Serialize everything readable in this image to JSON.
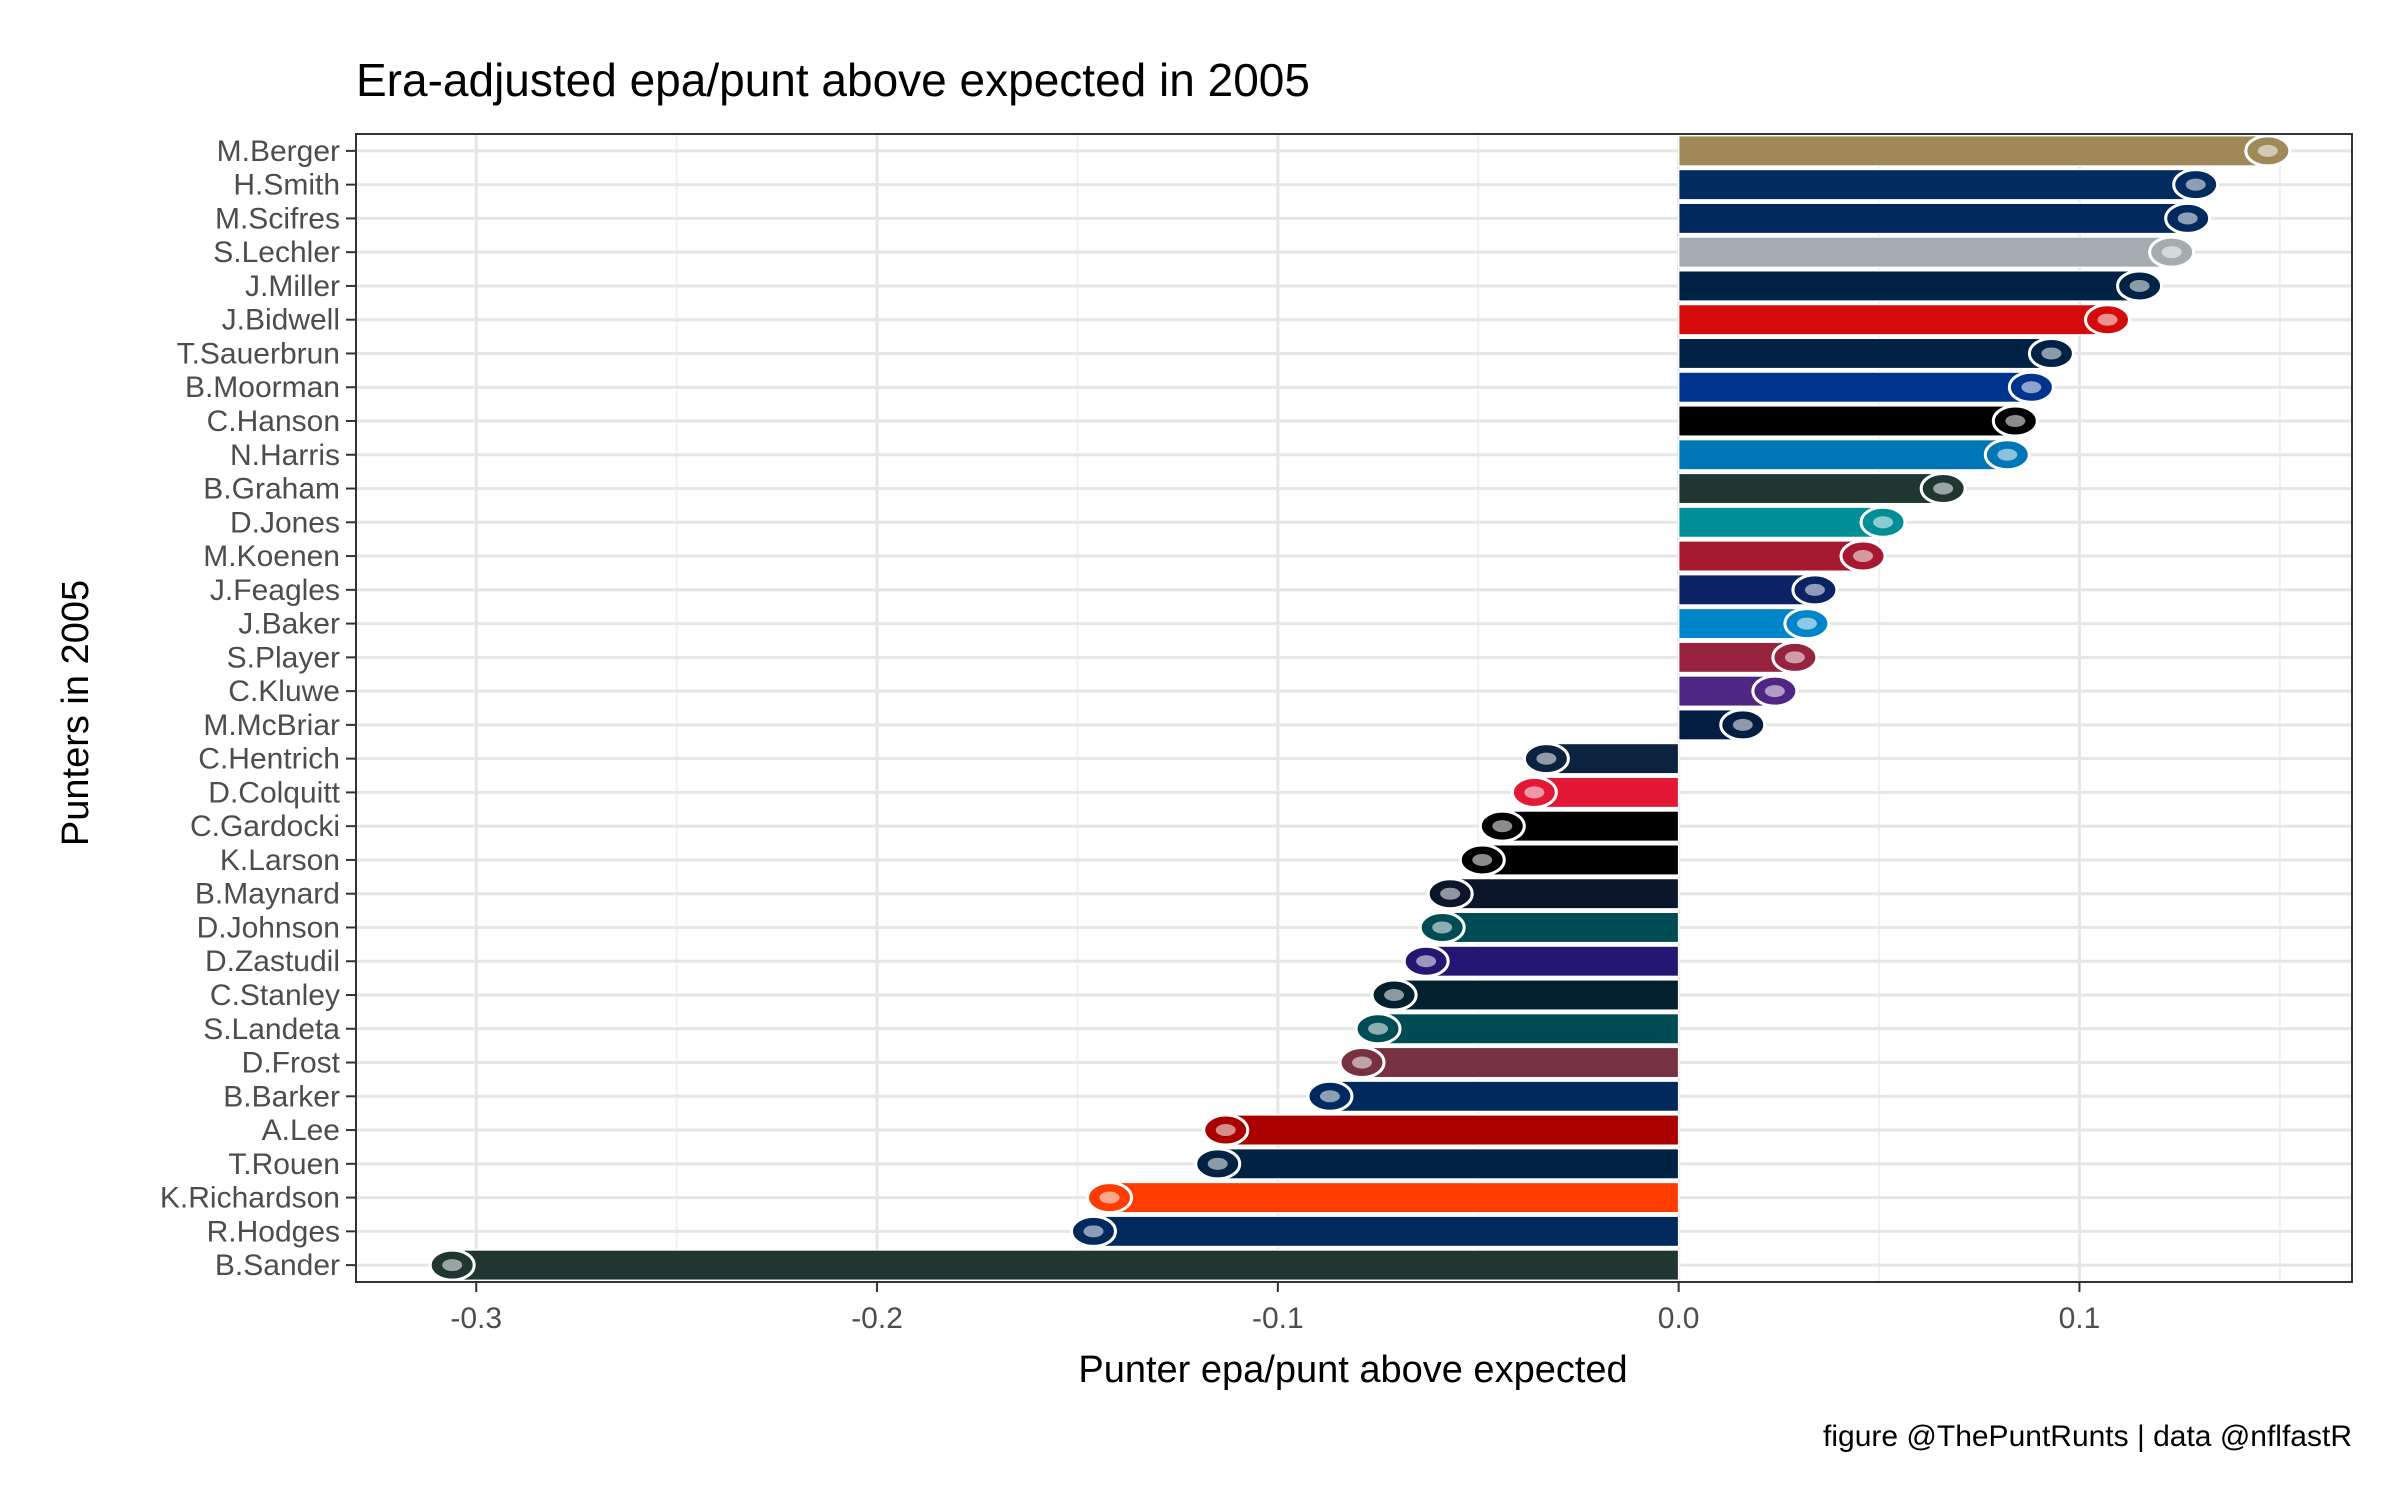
{
  "chart_data": {
    "type": "bar",
    "orientation": "horizontal",
    "title": "Era-adjusted epa/punt above expected in 2005",
    "xlabel": "Punter epa/punt above expected",
    "ylabel": "Punters in 2005",
    "caption": "figure @ThePuntRunts | data @nflfastR",
    "xlim": [
      -0.33,
      0.168
    ],
    "x_ticks": [
      -0.3,
      -0.2,
      -0.1,
      0.0,
      0.1
    ],
    "x_tick_labels": [
      "-0.3",
      "-0.2",
      "-0.1",
      "0.0",
      "0.1"
    ],
    "grid": true,
    "bars": [
      {
        "punter": "M.Berger",
        "value": 0.148,
        "color": "#9F8958",
        "team_icon": "saints-fleur-de-lis-icon"
      },
      {
        "punter": "H.Smith",
        "value": 0.13,
        "color": "#002C5F",
        "team_icon": "colts-horseshoe-icon"
      },
      {
        "punter": "M.Scifres",
        "value": 0.128,
        "color": "#002A5E",
        "team_icon": "chargers-bolt-icon"
      },
      {
        "punter": "S.Lechler",
        "value": 0.124,
        "color": "#A5ACAF",
        "team_icon": "raiders-shield-icon"
      },
      {
        "punter": "J.Miller",
        "value": 0.116,
        "color": "#002244",
        "team_icon": "patriots-icon"
      },
      {
        "punter": "J.Bidwell",
        "value": 0.108,
        "color": "#D50A0A",
        "team_icon": "buccaneers-flag-icon"
      },
      {
        "punter": "T.Sauerbrun",
        "value": 0.094,
        "color": "#002244",
        "team_icon": "broncos-horse-icon"
      },
      {
        "punter": "B.Moorman",
        "value": 0.089,
        "color": "#00338D",
        "team_icon": "bills-buffalo-icon"
      },
      {
        "punter": "C.Hanson",
        "value": 0.085,
        "color": "#000000",
        "team_icon": "jaguars-icon"
      },
      {
        "punter": "N.Harris",
        "value": 0.083,
        "color": "#0076B6",
        "team_icon": "lions-icon"
      },
      {
        "punter": "B.Graham",
        "value": 0.067,
        "color": "#203731",
        "team_icon": "jets-oval-icon"
      },
      {
        "punter": "D.Jones",
        "value": 0.052,
        "color": "#008E97",
        "team_icon": "dolphins-icon"
      },
      {
        "punter": "M.Koenen",
        "value": 0.047,
        "color": "#A71930",
        "team_icon": "falcons-icon"
      },
      {
        "punter": "J.Feagles",
        "value": 0.035,
        "color": "#0B2265",
        "team_icon": "giants-ny-icon"
      },
      {
        "punter": "J.Baker",
        "value": 0.033,
        "color": "#0085CA",
        "team_icon": "panthers-icon"
      },
      {
        "punter": "S.Player",
        "value": 0.03,
        "color": "#97233F",
        "team_icon": "cardinals-icon"
      },
      {
        "punter": "C.Kluwe",
        "value": 0.025,
        "color": "#4F2683",
        "team_icon": "vikings-icon"
      },
      {
        "punter": "M.McBriar",
        "value": 0.017,
        "color": "#041E42",
        "team_icon": "cowboys-star-icon"
      },
      {
        "punter": "C.Hentrich",
        "value": -0.034,
        "color": "#0C2340",
        "team_icon": "titans-icon"
      },
      {
        "punter": "D.Colquitt",
        "value": -0.037,
        "color": "#E31837",
        "team_icon": "chiefs-icon"
      },
      {
        "punter": "C.Gardocki",
        "value": -0.045,
        "color": "#000000",
        "team_icon": "steelers-icon"
      },
      {
        "punter": "K.Larson",
        "value": -0.05,
        "color": "#000000",
        "team_icon": "bengals-icon"
      },
      {
        "punter": "B.Maynard",
        "value": -0.058,
        "color": "#0B162A",
        "team_icon": "bears-c-icon"
      },
      {
        "punter": "D.Johnson",
        "value": -0.06,
        "color": "#004C54",
        "team_icon": "eagles-icon"
      },
      {
        "punter": "D.Zastudil",
        "value": -0.064,
        "color": "#241773",
        "team_icon": "ravens-icon"
      },
      {
        "punter": "C.Stanley",
        "value": -0.072,
        "color": "#03202F",
        "team_icon": "texans-icon"
      },
      {
        "punter": "S.Landeta",
        "value": -0.076,
        "color": "#004C54",
        "team_icon": "eagles-icon"
      },
      {
        "punter": "D.Frost",
        "value": -0.08,
        "color": "#773141",
        "team_icon": "washington-w-icon"
      },
      {
        "punter": "B.Barker",
        "value": -0.088,
        "color": "#002A5E",
        "team_icon": "rams-icon"
      },
      {
        "punter": "A.Lee",
        "value": -0.114,
        "color": "#AA0000",
        "team_icon": "49ers-oval-icon"
      },
      {
        "punter": "T.Rouen",
        "value": -0.116,
        "color": "#002244",
        "team_icon": "seahawks-icon"
      },
      {
        "punter": "K.Richardson",
        "value": -0.143,
        "color": "#FF3C00",
        "team_icon": "browns-helmet-icon"
      },
      {
        "punter": "R.Hodges",
        "value": -0.147,
        "color": "#002A5E",
        "team_icon": "rams-icon"
      },
      {
        "punter": "B.Sander",
        "value": -0.307,
        "color": "#203731",
        "team_icon": "packers-g-icon"
      }
    ]
  }
}
